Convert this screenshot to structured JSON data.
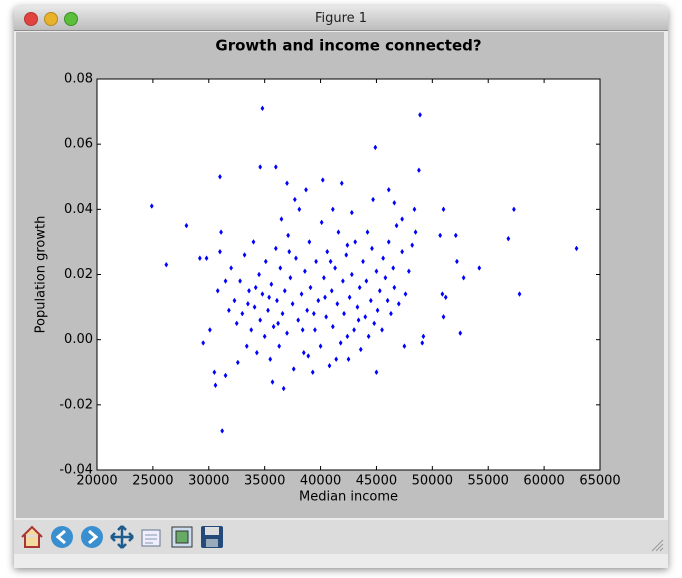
{
  "window": {
    "title": "Figure 1"
  },
  "chart_data": {
    "type": "scatter",
    "title": "Growth and income connected?",
    "xlabel": "Median income",
    "ylabel": "Population growth",
    "xlim": [
      20000,
      65000
    ],
    "xticks": [
      20000,
      25000,
      30000,
      35000,
      40000,
      45000,
      50000,
      55000,
      60000,
      65000
    ],
    "ylim": [
      -0.04,
      0.08
    ],
    "yticks": [
      -0.04,
      -0.02,
      {
        "value": 0,
        "label": "0.00"
      },
      0.02,
      0.04,
      0.06,
      0.08
    ],
    "grid": false,
    "x": [
      24900,
      26200,
      28000,
      29200,
      29800,
      29500,
      30100,
      30500,
      30600,
      31200,
      31500,
      31000,
      31100,
      31000,
      34600,
      34800,
      36000,
      44900,
      48900,
      48800,
      47500,
      49100,
      49200,
      45000,
      36700,
      35700,
      51000,
      50700,
      50900,
      51200,
      51000,
      52200,
      52100,
      52500,
      52800,
      54200,
      56800,
      57300,
      57800,
      62900,
      47300,
      46100,
      48400,
      46600,
      44700,
      41900,
      40200,
      38700,
      37000,
      41100,
      42800,
      44200,
      42400,
      32000,
      32300,
      32500,
      32800,
      33000,
      33200,
      33400,
      33600,
      33800,
      34000,
      34100,
      34300,
      34500,
      34600,
      34800,
      35000,
      35100,
      35300,
      35500,
      35600,
      35800,
      36000,
      36100,
      36300,
      36400,
      36500,
      36600,
      36800,
      37000,
      37100,
      37300,
      37500,
      37600,
      37800,
      38000,
      38100,
      38300,
      38500,
      38600,
      38800,
      39000,
      39100,
      39300,
      39500,
      39600,
      39800,
      40000,
      40100,
      40300,
      40500,
      40600,
      40800,
      41000,
      41100,
      41300,
      41500,
      41600,
      41800,
      42000,
      42100,
      42300,
      42500,
      42600,
      42800,
      43000,
      43100,
      43300,
      43500,
      43600,
      43800,
      44000,
      44100,
      44300,
      44500,
      44600,
      44800,
      45000,
      45100,
      45300,
      45500,
      45600,
      45800,
      46000,
      46100,
      46300,
      46500,
      46600,
      46800,
      47000,
      47300,
      47600,
      47900,
      48200,
      48500,
      33500,
      34200,
      35400,
      36200,
      37200,
      38400,
      39400,
      40400,
      41400,
      42400,
      43400,
      32600,
      31800,
      31500,
      30800,
      38900,
      40900,
      37700
    ],
    "series": [
      {
        "color": "#0000ff",
        "values": [
          0.041,
          0.023,
          0.035,
          0.025,
          0.025,
          -0.001,
          0.003,
          -0.01,
          -0.014,
          -0.028,
          -0.011,
          0.05,
          0.033,
          0.027,
          0.053,
          0.071,
          0.053,
          0.059,
          0.069,
          0.052,
          -0.002,
          -0.001,
          0.001,
          -0.01,
          -0.015,
          -0.013,
          0.04,
          0.032,
          0.014,
          0.013,
          0.007,
          0.024,
          0.032,
          0.002,
          0.019,
          0.022,
          0.031,
          0.04,
          0.014,
          0.028,
          0.037,
          0.046,
          0.04,
          0.042,
          0.043,
          0.048,
          0.049,
          0.046,
          0.048,
          0.04,
          0.039,
          0.033,
          0.029,
          0.022,
          0.012,
          0.005,
          0.018,
          0.008,
          0.026,
          -0.002,
          0.015,
          0.003,
          0.03,
          0.01,
          -0.004,
          0.02,
          0.006,
          0.014,
          0.001,
          0.024,
          0.009,
          -0.006,
          0.017,
          0.004,
          0.028,
          0.012,
          -0.002,
          0.022,
          0.037,
          0.008,
          0.015,
          0.002,
          0.032,
          0.019,
          0.011,
          -0.009,
          0.025,
          0.006,
          0.04,
          0.014,
          -0.004,
          0.021,
          0.009,
          0.03,
          0.016,
          -0.01,
          0.003,
          0.024,
          0.012,
          -0.002,
          0.036,
          0.019,
          0.007,
          0.027,
          -0.008,
          0.015,
          0.004,
          0.022,
          0.011,
          0.033,
          -0.001,
          0.018,
          0.008,
          0.026,
          -0.006,
          0.013,
          0.02,
          0.003,
          0.03,
          0.01,
          0.016,
          -0.003,
          0.024,
          0.007,
          0.018,
          0.001,
          0.012,
          0.028,
          0.005,
          0.021,
          0.009,
          0.015,
          0.003,
          0.025,
          0.019,
          0.012,
          0.03,
          0.008,
          0.022,
          0.016,
          0.035,
          0.011,
          0.027,
          0.014,
          0.021,
          0.029,
          0.033,
          0.011,
          0.016,
          0.013,
          0.005,
          0.027,
          0.003,
          0.008,
          0.013,
          -0.006,
          0.001,
          0.006,
          -0.007,
          0.009,
          0.018,
          0.015,
          -0.005,
          0.024,
          0.043
        ]
      }
    ]
  }
}
